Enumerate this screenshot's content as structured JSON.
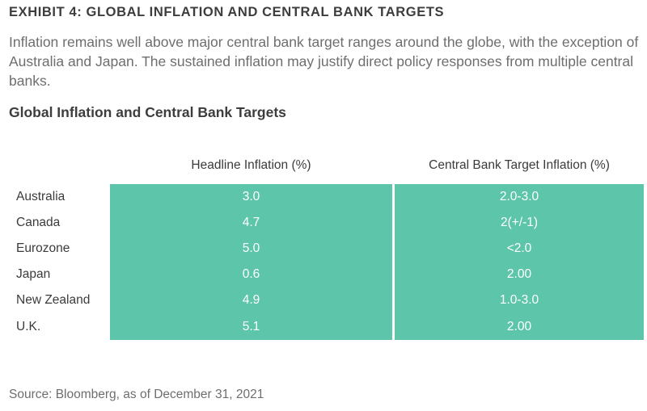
{
  "exhibit_title": "EXHIBIT 4: GLOBAL INFLATION AND CENTRAL BANK TARGETS",
  "intro_text": "Inflation remains well above major central bank target ranges around the globe, with the exception of Australia and Japan. The sustained inflation may justify direct policy responses from multiple central banks.",
  "table_title": "Global Inflation and Central Bank Targets",
  "table": {
    "headers": [
      "Headline Inflation (%)",
      "Central Bank Target Inflation (%)"
    ],
    "rows": [
      {
        "country": "Australia",
        "headline": "3.0",
        "target": "2.0-3.0"
      },
      {
        "country": "Canada",
        "headline": "4.7",
        "target": "2(+/-1)"
      },
      {
        "country": "Eurozone",
        "headline": "5.0",
        "target": "<2.0"
      },
      {
        "country": "Japan",
        "headline": "0.6",
        "target": "2.00"
      },
      {
        "country": "New Zealand",
        "headline": "4.9",
        "target": "1.0-3.0"
      },
      {
        "country": "U.K.",
        "headline": "5.1",
        "target": "2.00"
      }
    ]
  },
  "source": "Source: Bloomberg, as of December 31, 2021",
  "colors": {
    "band": "#5cc5aa",
    "cell_text": "#ffffff",
    "title_text": "#3d3d3d",
    "body_text": "#6e6e6e"
  }
}
